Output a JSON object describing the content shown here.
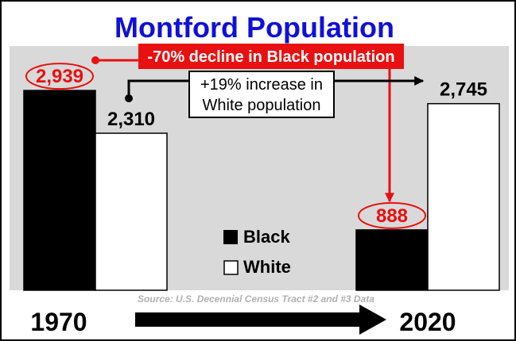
{
  "chart_data": {
    "type": "bar",
    "title": "Montford Population",
    "categories": [
      "1970",
      "2020"
    ],
    "series": [
      {
        "name": "Black",
        "values": [
          2939,
          888
        ],
        "labels": [
          "2,939",
          "888"
        ],
        "color": "#000000"
      },
      {
        "name": "White",
        "values": [
          2310,
          2745
        ],
        "labels": [
          "2,310",
          "2,745"
        ],
        "color": "#ffffff"
      }
    ],
    "ylim": [
      0,
      3500
    ],
    "grid": false,
    "legend_position": "center-bottom",
    "annotations": {
      "black_change": "-70% decline in Black population",
      "white_change_line1": "+19% increase in",
      "white_change_line2": "White population"
    },
    "source": "Source: U.S. Decennial Census Tract #2 and #3 Data",
    "colors": {
      "title": "#1010d8",
      "accent": "#e81010",
      "plot_bg": "#d9d9d9"
    }
  }
}
